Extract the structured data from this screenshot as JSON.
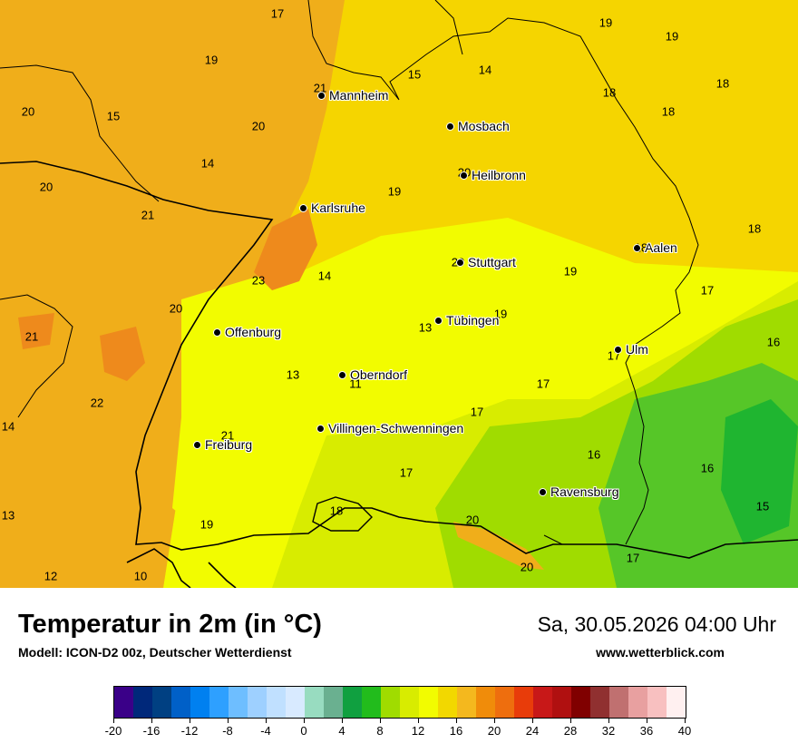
{
  "title": "Temperatur in 2m (in °C)",
  "subtitle": "Modell: ICON-D2 00z, Deutscher Wetterdienst",
  "datetime": "Sa, 30.05.2026 04:00 Uhr",
  "website": "www.wetterblick.com",
  "colors": {
    "temp_13": "#9fe31e",
    "temp_14": "#f2fc00",
    "temp_17": "#e8ee00",
    "temp_19": "#f5d500",
    "temp_21": "#f0ae1a",
    "temp_23": "#ee8a1c",
    "temp_16": "#56c628",
    "temp_15": "#1fb530",
    "border": "#000000"
  },
  "cities": [
    {
      "name": "Mannheim"
    },
    {
      "name": "Mosbach"
    },
    {
      "name": "Heilbronn"
    },
    {
      "name": "Karlsruhe"
    },
    {
      "name": "Aalen"
    },
    {
      "name": "Stuttgart"
    },
    {
      "name": "Tübingen"
    },
    {
      "name": "Offenburg"
    },
    {
      "name": "Ulm"
    },
    {
      "name": "Oberndorf"
    },
    {
      "name": "Villingen-Schwenningen"
    },
    {
      "name": "Freiburg"
    },
    {
      "name": "Ravensburg"
    }
  ],
  "values": [
    "17",
    "19",
    "19",
    "19",
    "21",
    "15",
    "14",
    "20",
    "15",
    "18",
    "18",
    "18",
    "20",
    "14",
    "20",
    "19",
    "20",
    "21",
    "18",
    "23",
    "14",
    "20",
    "13",
    "19",
    "19",
    "21",
    "13",
    "11",
    "17",
    "17",
    "16",
    "22",
    "21",
    "17",
    "14",
    "16",
    "18",
    "20",
    "17",
    "13",
    "20",
    "19",
    "12",
    "10",
    "15",
    "17"
  ],
  "legend": {
    "colors": [
      "#3a0088",
      "#00287a",
      "#004082",
      "#0060c8",
      "#0080f0",
      "#2ea0ff",
      "#6ebeff",
      "#9ed0ff",
      "#c0e0ff",
      "#d8eaff",
      "#98dcc0",
      "#6ab090",
      "#10a040",
      "#22bc1c",
      "#a0dc00",
      "#d8ec00",
      "#f2fc00",
      "#f2d800",
      "#f4b81e",
      "#f08c0a",
      "#ee6e0e",
      "#e83c0a",
      "#c81818",
      "#b01010",
      "#800000",
      "#903030",
      "#c07070",
      "#e8a0a0",
      "#f8c0c0",
      "#fff0f0"
    ],
    "ticks": [
      "-20",
      "-16",
      "-12",
      "-8",
      "-4",
      "0",
      "4",
      "8",
      "12",
      "16",
      "20",
      "24",
      "28",
      "32",
      "36",
      "40"
    ]
  }
}
